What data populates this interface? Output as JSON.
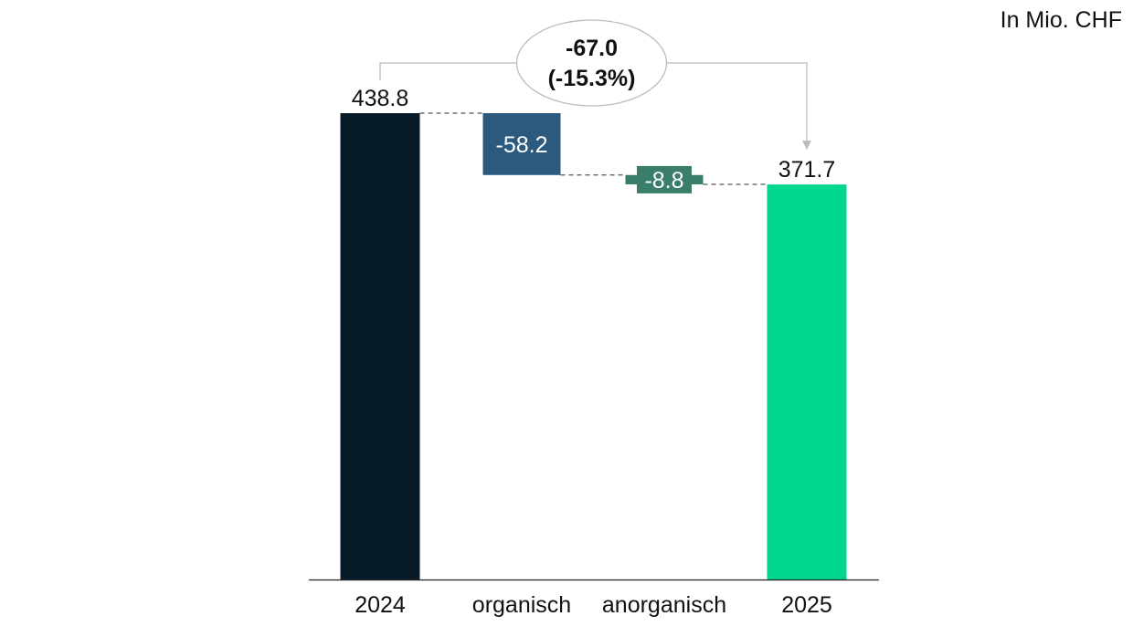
{
  "unit_label": "In Mio. CHF",
  "colors": {
    "start_bar": "#071a27",
    "organic_bar": "#2b5a7e",
    "inorganic_bar": "#3a7d6b",
    "end_bar": "#00d68f",
    "connector": "#555555",
    "bubble_stroke": "#bbbbbb",
    "bubble_arrow": "#bbbbbb",
    "text": "#111111",
    "text_on_bar": "#ffffff"
  },
  "chart_data": {
    "type": "bar",
    "subtype": "waterfall",
    "categories": [
      "2024",
      "organisch",
      "anorganisch",
      "2025"
    ],
    "values": [
      438.8,
      -58.2,
      -8.8,
      371.7
    ],
    "kinds": [
      "total",
      "delta",
      "delta",
      "total"
    ],
    "value_labels": [
      "438.8",
      "-58.2",
      "-8.8",
      "371.7"
    ],
    "total_change": {
      "label_line1": "-67.0",
      "label_line2": "(-15.3%)"
    },
    "ylim": [
      0,
      438.8
    ],
    "grid": false,
    "legend": "none"
  }
}
